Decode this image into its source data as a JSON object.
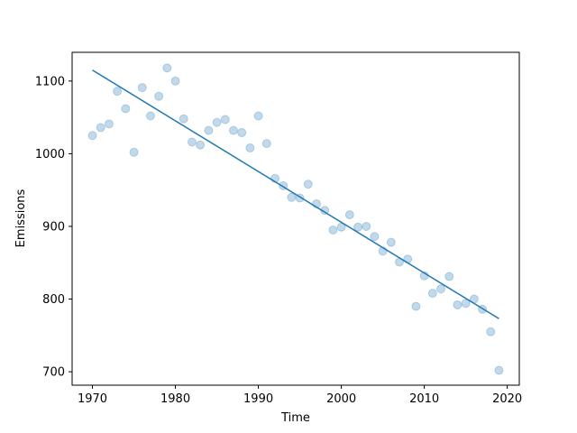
{
  "chart_data": {
    "type": "scatter",
    "title": "",
    "xlabel": "Time",
    "ylabel": "Emissions",
    "xlim": [
      1967.55,
      2021.45
    ],
    "ylim": [
      681.5,
      1139.5
    ],
    "xticks": [
      1970,
      1980,
      1990,
      2000,
      2010,
      2020
    ],
    "yticks": [
      700,
      800,
      900,
      1000,
      1100
    ],
    "grid": false,
    "colors": {
      "points": "#1f77b4",
      "line": "#1f77b4"
    },
    "series": [
      {
        "kind": "scatter",
        "x": [
          1970,
          1971,
          1972,
          1973,
          1974,
          1975,
          1976,
          1977,
          1978,
          1979,
          1980,
          1981,
          1982,
          1983,
          1984,
          1985,
          1986,
          1987,
          1988,
          1989,
          1990,
          1991,
          1992,
          1993,
          1994,
          1995,
          1996,
          1997,
          1998,
          1999,
          2000,
          2001,
          2002,
          2003,
          2004,
          2005,
          2006,
          2007,
          2008,
          2009,
          2010,
          2011,
          2012,
          2013,
          2014,
          2015,
          2016,
          2017,
          2018,
          2019
        ],
        "y": [
          1025,
          1036,
          1041,
          1086,
          1062,
          1002,
          1091,
          1052,
          1079,
          1118,
          1100,
          1048,
          1016,
          1012,
          1032,
          1043,
          1047,
          1032,
          1029,
          1008,
          1052,
          1014,
          966,
          956,
          940,
          939,
          958,
          931,
          922,
          895,
          899,
          916,
          899,
          900,
          886,
          866,
          878,
          851,
          855,
          790,
          832,
          808,
          814,
          831,
          792,
          794,
          800,
          786,
          755,
          702
        ]
      },
      {
        "kind": "line",
        "x": [
          1970,
          2019
        ],
        "y": [
          1115,
          773
        ]
      }
    ]
  }
}
